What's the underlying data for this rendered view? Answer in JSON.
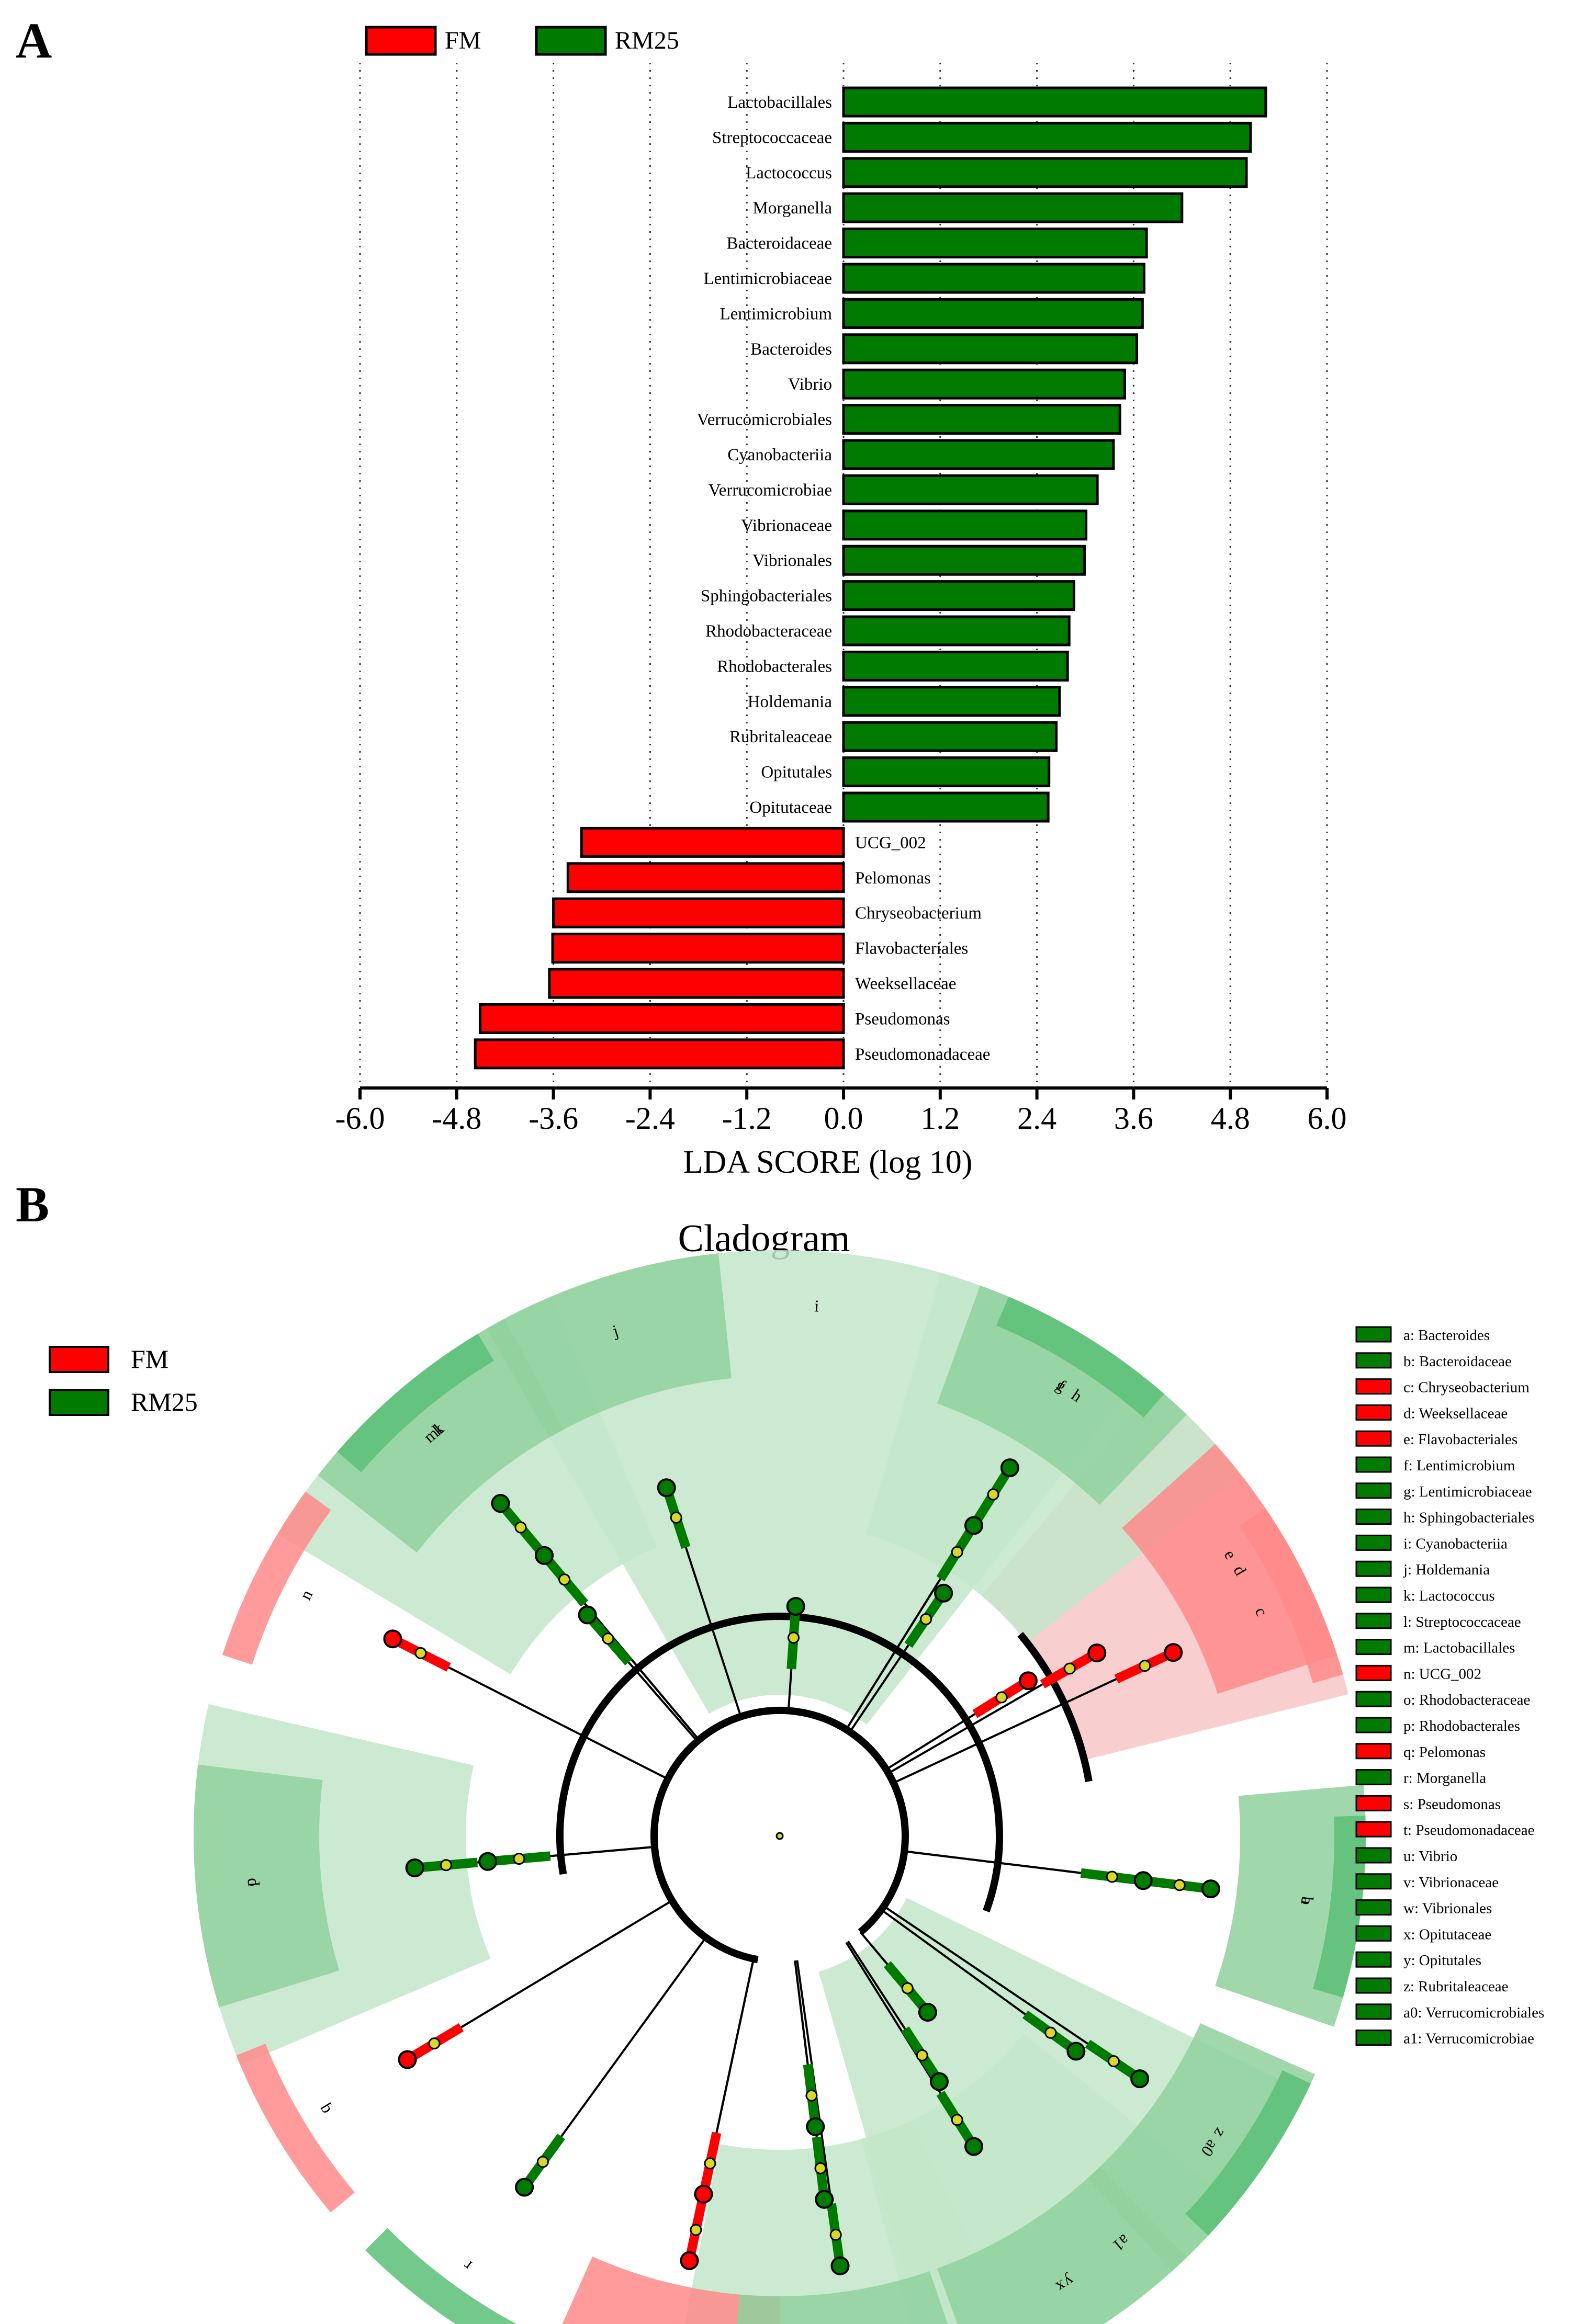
{
  "panels": {
    "a_label": "A",
    "b_label": "B"
  },
  "colors": {
    "fm": "#ff0000",
    "rm25": "#007b00",
    "fm_light": "#f8c6c6",
    "fm_mid": "#ff8a8a",
    "rm25_light": "#c3e6ca",
    "rm25_mid": "#8fd19d",
    "rm25_dark": "#5bbf77"
  },
  "chart_data": [
    {
      "type": "bar",
      "orientation": "horizontal",
      "legend": [
        {
          "name": "FM",
          "color": "#ff0000"
        },
        {
          "name": "RM25",
          "color": "#007b00"
        }
      ],
      "xlabel": "LDA SCORE (log 10)",
      "xlim": [
        -6.0,
        6.0
      ],
      "xticks": [
        "-6.0",
        "-4.8",
        "-3.6",
        "-2.4",
        "-1.2",
        "0.0",
        "1.2",
        "2.4",
        "3.6",
        "4.8",
        "6.0"
      ],
      "grid": "vertical dotted",
      "categories": [
        "Lactobacillales",
        "Streptococcaceae",
        "Lactococcus",
        "Morganella",
        "Bacteroidaceae",
        "Lentimicrobiaceae",
        "Lentimicrobium",
        "Bacteroides",
        "Vibrio",
        "Verrucomicrobiales",
        "Cyanobacteriia",
        "Verrucomicrobiae",
        "Vibrionaceae",
        "Vibrionales",
        "Sphingobacteriales",
        "Rhodobacteraceae",
        "Rhodobacterales",
        "Holdemania",
        "Rubritaleaceae",
        "Opitutales",
        "Opitutaceae",
        "UCG_002",
        "Pelomonas",
        "Chryseobacterium",
        "Flavobacteriales",
        "Weeksellaceae",
        "Pseudomonas",
        "Pseudomonadaceae"
      ],
      "values": [
        5.24,
        5.05,
        5.0,
        4.2,
        3.76,
        3.73,
        3.71,
        3.64,
        3.49,
        3.43,
        3.35,
        3.15,
        3.01,
        2.99,
        2.86,
        2.8,
        2.78,
        2.68,
        2.64,
        2.55,
        2.54,
        -3.25,
        -3.42,
        -3.6,
        -3.61,
        -3.65,
        -4.51,
        -4.57
      ],
      "groups": [
        "RM25",
        "RM25",
        "RM25",
        "RM25",
        "RM25",
        "RM25",
        "RM25",
        "RM25",
        "RM25",
        "RM25",
        "RM25",
        "RM25",
        "RM25",
        "RM25",
        "RM25",
        "RM25",
        "RM25",
        "RM25",
        "RM25",
        "RM25",
        "RM25",
        "FM",
        "FM",
        "FM",
        "FM",
        "FM",
        "FM",
        "FM"
      ]
    },
    {
      "type": "cladogram",
      "title": "Cladogram",
      "legend": [
        {
          "name": "FM",
          "color": "#ff0000"
        },
        {
          "name": "RM25",
          "color": "#007b00"
        }
      ],
      "key_items": [
        {
          "label": "a: Bacteroides",
          "group": "RM25"
        },
        {
          "label": "b: Bacteroidaceae",
          "group": "RM25"
        },
        {
          "label": "c: Chryseobacterium",
          "group": "FM"
        },
        {
          "label": "d: Weeksellaceae",
          "group": "FM"
        },
        {
          "label": "e: Flavobacteriales",
          "group": "FM"
        },
        {
          "label": "f: Lentimicrobium",
          "group": "RM25"
        },
        {
          "label": "g: Lentimicrobiaceae",
          "group": "RM25"
        },
        {
          "label": "h: Sphingobacteriales",
          "group": "RM25"
        },
        {
          "label": "i: Cyanobacteriia",
          "group": "RM25"
        },
        {
          "label": "j: Holdemania",
          "group": "RM25"
        },
        {
          "label": "k: Lactococcus",
          "group": "RM25"
        },
        {
          "label": "l: Streptococcaceae",
          "group": "RM25"
        },
        {
          "label": "m: Lactobacillales",
          "group": "RM25"
        },
        {
          "label": "n: UCG_002",
          "group": "FM"
        },
        {
          "label": "o: Rhodobacteraceae",
          "group": "RM25"
        },
        {
          "label": "p: Rhodobacterales",
          "group": "RM25"
        },
        {
          "label": "q: Pelomonas",
          "group": "FM"
        },
        {
          "label": "r: Morganella",
          "group": "RM25"
        },
        {
          "label": "s: Pseudomonas",
          "group": "FM"
        },
        {
          "label": "t: Pseudomonadaceae",
          "group": "FM"
        },
        {
          "label": "u: Vibrio",
          "group": "RM25"
        },
        {
          "label": "v: Vibrionaceae",
          "group": "RM25"
        },
        {
          "label": "w: Vibrionales",
          "group": "RM25"
        },
        {
          "label": "x: Opitutaceae",
          "group": "RM25"
        },
        {
          "label": "y: Opitutales",
          "group": "RM25"
        },
        {
          "label": "z: Rubritaleaceae",
          "group": "RM25"
        },
        {
          "label": "a0: Verrucomicrobiales",
          "group": "RM25"
        },
        {
          "label": "a1: Verrucomicrobiae",
          "group": "RM25"
        }
      ],
      "clades": [
        {
          "letter": "a",
          "group": "RM25",
          "level": 6,
          "angle": 97
        },
        {
          "letter": "b",
          "group": "RM25",
          "level": 5,
          "angle": 97
        },
        {
          "letter": "c",
          "group": "FM",
          "level": 6,
          "angle": 65
        },
        {
          "letter": "d",
          "group": "FM",
          "level": 5,
          "angle": 60
        },
        {
          "letter": "e",
          "group": "FM",
          "level": 4,
          "angle": 58
        },
        {
          "letter": "f",
          "group": "RM25",
          "level": 6,
          "angle": 32
        },
        {
          "letter": "g",
          "group": "RM25",
          "level": 5,
          "angle": 32
        },
        {
          "letter": "h",
          "group": "RM25",
          "level": 4,
          "angle": 34
        },
        {
          "letter": "i",
          "group": "RM25",
          "level": 3,
          "angle": 4
        },
        {
          "letter": "j",
          "group": "RM25",
          "level": 5,
          "angle": -18
        },
        {
          "letter": "k",
          "group": "RM25",
          "level": 6,
          "angle": -40
        },
        {
          "letter": "l",
          "group": "RM25",
          "level": 5,
          "angle": -40
        },
        {
          "letter": "m",
          "group": "RM25",
          "level": 4,
          "angle": -41
        },
        {
          "letter": "n",
          "group": "FM",
          "level": 6,
          "angle": -63
        },
        {
          "letter": "o",
          "group": "RM25",
          "level": 5,
          "angle": -95
        },
        {
          "letter": "p",
          "group": "RM25",
          "level": 4,
          "angle": -95
        },
        {
          "letter": "q",
          "group": "FM",
          "level": 6,
          "angle": -121
        },
        {
          "letter": "r",
          "group": "RM25",
          "level": 6,
          "angle": -144
        },
        {
          "letter": "s",
          "group": "FM",
          "level": 6,
          "angle": -168
        },
        {
          "letter": "t",
          "group": "FM",
          "level": 5,
          "angle": -168
        },
        {
          "letter": "u",
          "group": "RM25",
          "level": 6,
          "angle": 172
        },
        {
          "letter": "v",
          "group": "RM25",
          "level": 5,
          "angle": 173
        },
        {
          "letter": "w",
          "group": "RM25",
          "level": 4,
          "angle": 173
        },
        {
          "letter": "x",
          "group": "RM25",
          "level": 5,
          "angle": 148
        },
        {
          "letter": "y",
          "group": "RM25",
          "level": 4,
          "angle": 147
        },
        {
          "letter": "z",
          "group": "RM25",
          "level": 6,
          "angle": 124
        },
        {
          "letter": "a0",
          "group": "RM25",
          "level": 5,
          "angle": 126
        },
        {
          "letter": "a1",
          "group": "RM25",
          "level": 3,
          "angle": 140
        }
      ]
    }
  ]
}
